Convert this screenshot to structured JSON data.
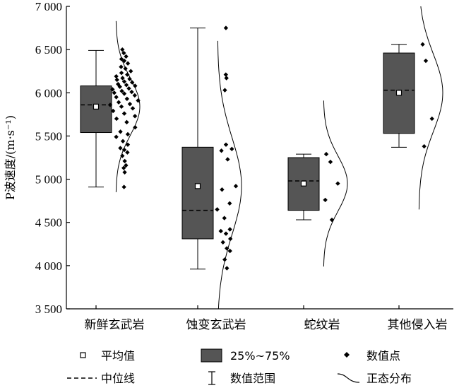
{
  "chart_data": {
    "type": "box",
    "ylabel": "P波速度/(m·s⁻¹)",
    "ylim": [
      3500,
      7000
    ],
    "yticks": [
      3500,
      4000,
      4500,
      5000,
      5500,
      6000,
      6500,
      7000
    ],
    "ytick_labels": [
      "3 500",
      "4 000",
      "4 500",
      "5 000",
      "5 500",
      "6 000",
      "6 500",
      "7 000"
    ],
    "categories": [
      "新鲜玄武岩",
      "蚀变玄武岩",
      "蛇纹岩",
      "其他侵入岩"
    ],
    "colors": {
      "box_fill": "#555555",
      "stroke": "#000000"
    },
    "groups": [
      {
        "name": "新鲜玄武岩",
        "min": 4910,
        "q1": 5540,
        "median": 5860,
        "q3": 6080,
        "max": 6490,
        "mean": 5840,
        "points": [
          6500,
          6460,
          6420,
          6390,
          6370,
          6340,
          6300,
          6280,
          6250,
          6230,
          6210,
          6190,
          6170,
          6160,
          6150,
          6130,
          6120,
          6100,
          6090,
          6080,
          6070,
          6050,
          6040,
          6020,
          6010,
          6000,
          5990,
          5970,
          5950,
          5930,
          5910,
          5890,
          5870,
          5860,
          5840,
          5820,
          5790,
          5760,
          5730,
          5700,
          5660,
          5600,
          5550,
          5520,
          5490,
          5440,
          5400,
          5360,
          5340,
          5310,
          5270,
          5210,
          5160,
          5130,
          5080,
          4910
        ],
        "normal": {
          "mean": 5840,
          "sd": 330
        }
      },
      {
        "name": "蚀变玄武岩",
        "min": 3960,
        "q1": 4310,
        "median": 4640,
        "q3": 5370,
        "max": 6750,
        "mean": 4920,
        "points": [
          6750,
          6210,
          6170,
          6030,
          5400,
          5350,
          5330,
          5230,
          4920,
          4880,
          4720,
          4650,
          4550,
          4420,
          4400,
          4370,
          4310,
          4270,
          4200,
          4170,
          4070,
          3970
        ],
        "normal": {
          "mean": 4920,
          "sd": 560
        }
      },
      {
        "name": "蛇纹岩",
        "min": 4530,
        "q1": 4640,
        "median": 4980,
        "q3": 5250,
        "max": 5290,
        "mean": 4950,
        "points": [
          5290,
          5200,
          4950,
          4760,
          4530
        ],
        "normal": {
          "mean": 4950,
          "sd": 320
        }
      },
      {
        "name": "其他侵入岩",
        "min": 5370,
        "q1": 5530,
        "median": 6030,
        "q3": 6460,
        "max": 6560,
        "mean": 6000,
        "points": [
          6560,
          6370,
          5700,
          5380
        ],
        "normal": {
          "mean": 6000,
          "sd": 450
        }
      }
    ],
    "legend": {
      "mean": "平均值",
      "box": "25%~75%",
      "points": "数值点",
      "median": "中位线",
      "range": "数值范围",
      "normal": "正态分布"
    }
  }
}
